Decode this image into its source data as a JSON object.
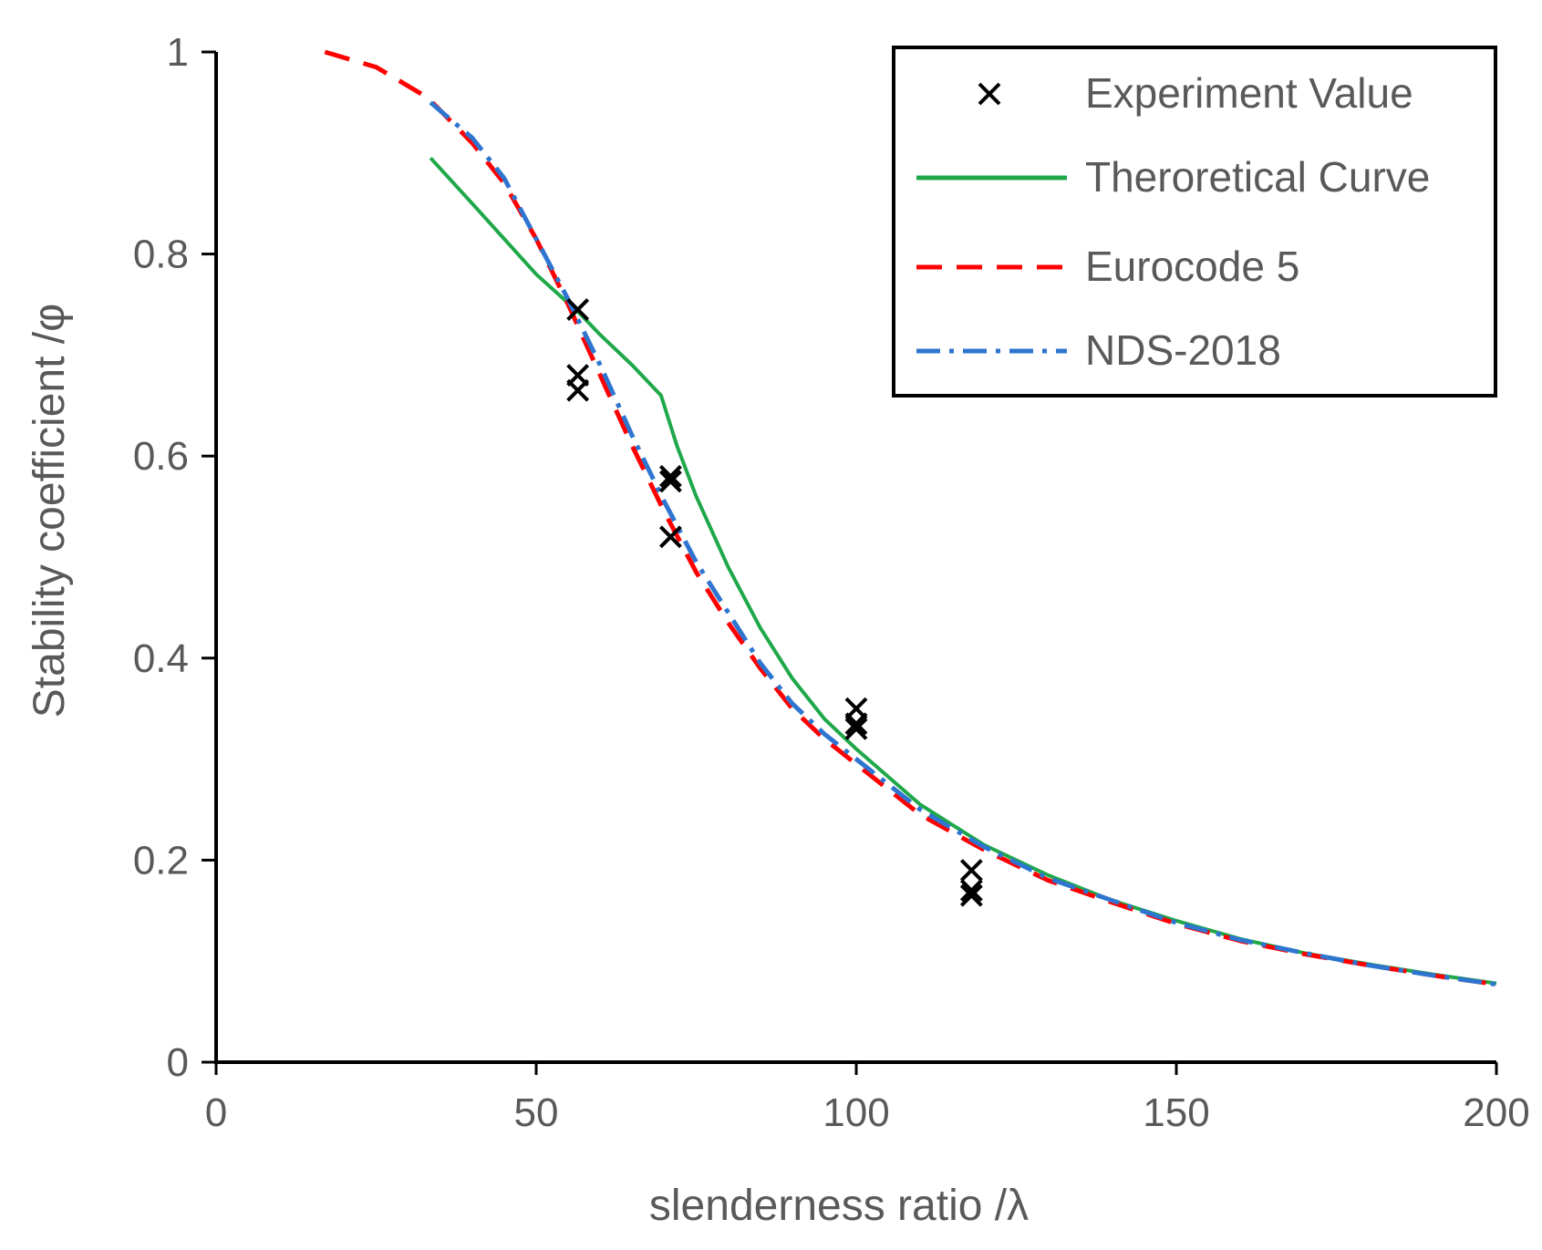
{
  "chart_data": {
    "type": "line",
    "title": "",
    "xlabel": "slenderness ratio /λ",
    "ylabel": "Stability coefficient /φ",
    "xlim": [
      0,
      200
    ],
    "ylim": [
      0,
      1
    ],
    "xticks": [
      0,
      50,
      100,
      150,
      200
    ],
    "yticks": [
      0,
      0.2,
      0.4,
      0.6,
      0.8,
      1
    ],
    "ytick_labels": [
      "0",
      "0.2",
      "0.4",
      "0.6",
      "0.8",
      "1"
    ],
    "grid": false,
    "legend_position": "top-right",
    "series": [
      {
        "name": "Experiment Value",
        "type": "scatter",
        "marker": "x",
        "color": "#000000",
        "points": [
          [
            56.5,
            0.745
          ],
          [
            56.5,
            0.68
          ],
          [
            56.5,
            0.665
          ],
          [
            71,
            0.58
          ],
          [
            71,
            0.575
          ],
          [
            71,
            0.52
          ],
          [
            100,
            0.35
          ],
          [
            100,
            0.335
          ],
          [
            100,
            0.33
          ],
          [
            118,
            0.19
          ],
          [
            118,
            0.17
          ],
          [
            118,
            0.165
          ]
        ]
      },
      {
        "name": "Theroretical Curve",
        "type": "line",
        "style": "solid",
        "color": "#1fa84a",
        "points": [
          [
            33.5,
            0.895
          ],
          [
            40,
            0.85
          ],
          [
            50,
            0.78
          ],
          [
            57,
            0.74
          ],
          [
            60,
            0.72
          ],
          [
            65,
            0.69
          ],
          [
            69.5,
            0.66
          ],
          [
            72,
            0.61
          ],
          [
            75,
            0.56
          ],
          [
            80,
            0.49
          ],
          [
            85,
            0.43
          ],
          [
            90,
            0.38
          ],
          [
            95,
            0.34
          ],
          [
            100,
            0.31
          ],
          [
            110,
            0.255
          ],
          [
            120,
            0.215
          ],
          [
            130,
            0.185
          ],
          [
            140,
            0.16
          ],
          [
            150,
            0.14
          ],
          [
            160,
            0.122
          ],
          [
            170,
            0.108
          ],
          [
            180,
            0.097
          ],
          [
            190,
            0.087
          ],
          [
            200,
            0.078
          ]
        ]
      },
      {
        "name": "Eurocode 5",
        "type": "line",
        "style": "dashed",
        "color": "#ff0000",
        "points": [
          [
            17,
            1.0
          ],
          [
            25,
            0.985
          ],
          [
            33,
            0.955
          ],
          [
            40,
            0.91
          ],
          [
            45,
            0.87
          ],
          [
            50,
            0.815
          ],
          [
            55,
            0.75
          ],
          [
            60,
            0.68
          ],
          [
            65,
            0.61
          ],
          [
            70,
            0.545
          ],
          [
            75,
            0.485
          ],
          [
            80,
            0.435
          ],
          [
            85,
            0.39
          ],
          [
            90,
            0.35
          ],
          [
            95,
            0.32
          ],
          [
            100,
            0.295
          ],
          [
            110,
            0.245
          ],
          [
            120,
            0.21
          ],
          [
            130,
            0.18
          ],
          [
            140,
            0.158
          ],
          [
            150,
            0.137
          ],
          [
            160,
            0.12
          ],
          [
            170,
            0.107
          ],
          [
            180,
            0.096
          ],
          [
            190,
            0.086
          ],
          [
            200,
            0.077
          ]
        ]
      },
      {
        "name": "NDS-2018",
        "type": "line",
        "style": "dash-dot",
        "color": "#2e75d0",
        "points": [
          [
            33.5,
            0.95
          ],
          [
            40,
            0.915
          ],
          [
            45,
            0.875
          ],
          [
            50,
            0.815
          ],
          [
            55,
            0.755
          ],
          [
            60,
            0.69
          ],
          [
            65,
            0.62
          ],
          [
            70,
            0.555
          ],
          [
            75,
            0.495
          ],
          [
            80,
            0.445
          ],
          [
            85,
            0.395
          ],
          [
            90,
            0.355
          ],
          [
            95,
            0.325
          ],
          [
            100,
            0.3
          ],
          [
            110,
            0.25
          ],
          [
            120,
            0.213
          ],
          [
            130,
            0.182
          ],
          [
            140,
            0.16
          ],
          [
            150,
            0.138
          ],
          [
            160,
            0.121
          ],
          [
            170,
            0.108
          ],
          [
            180,
            0.096
          ],
          [
            190,
            0.086
          ],
          [
            200,
            0.077
          ]
        ]
      }
    ]
  }
}
